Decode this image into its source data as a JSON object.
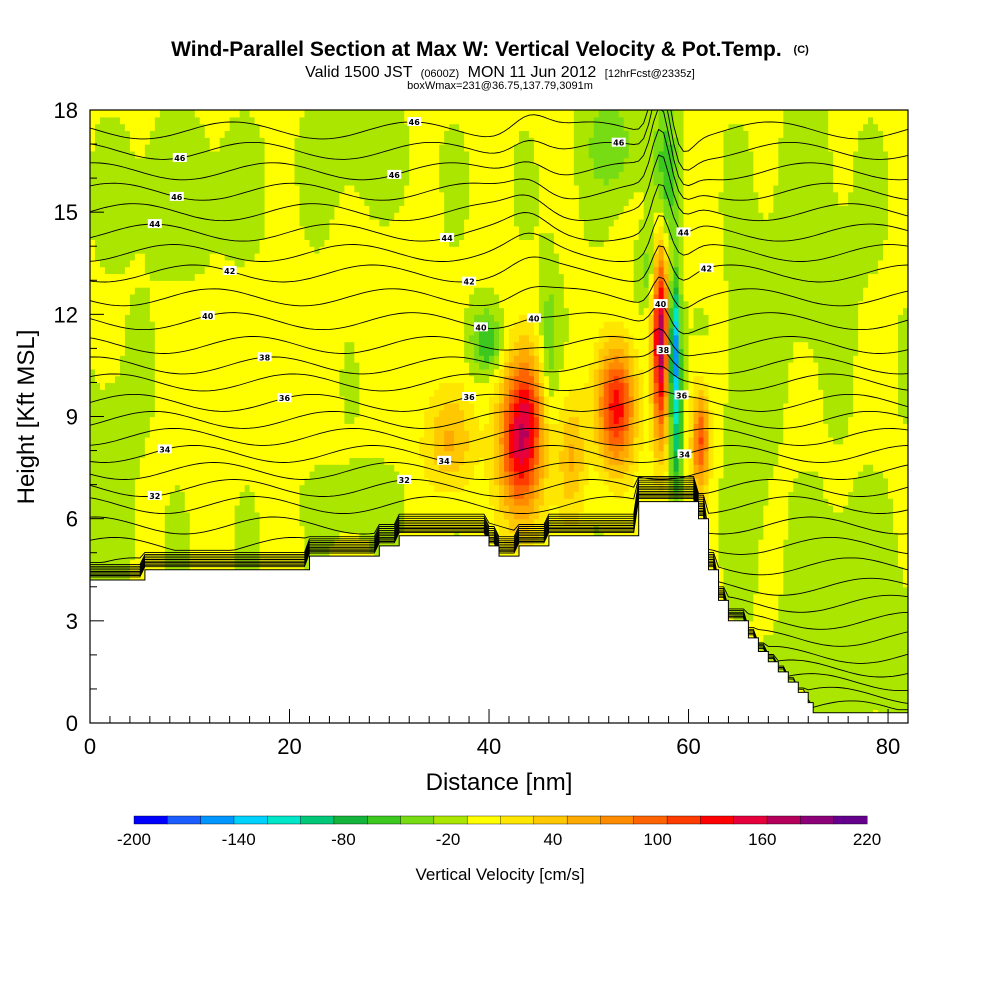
{
  "title": "Wind-Parallel Section at Max W: Vertical Velocity & Pot.Temp.",
  "title_suffix": "(C)",
  "subtitle": {
    "part1": "Valid 1500 JST",
    "part2": "(0600Z)",
    "part3": "MON 11 Jun 2012",
    "part4": "[12hrFcst@2335z]"
  },
  "subtitle2": "boxWmax=231@36.75,137.79,3091m",
  "chart_data": {
    "type": "heatmap",
    "xlabel": "Distance [nm]",
    "ylabel": "Height [Kft MSL]",
    "xlim": [
      0,
      82
    ],
    "ylim": [
      0,
      18
    ],
    "x_ticks": [
      0,
      20,
      40,
      60,
      80
    ],
    "y_ticks": [
      0,
      3,
      6,
      9,
      12,
      15,
      18
    ],
    "fill_variable": "Vertical Velocity [cm/s]",
    "contour_variable": "Potential temperature (C)",
    "colorbar": {
      "label": "Vertical Velocity [cm/s]",
      "levels": [
        -200,
        -180,
        -160,
        -140,
        -120,
        -100,
        -80,
        -60,
        -40,
        -20,
        0,
        20,
        40,
        60,
        80,
        100,
        120,
        140,
        160,
        180,
        200,
        220
      ],
      "tick_labels": [
        "-200",
        "-140",
        "-80",
        "-20",
        "40",
        "100",
        "160",
        "220"
      ],
      "colors": [
        "#0000ff",
        "#1a5cff",
        "#0096ff",
        "#00d2ff",
        "#00e6c8",
        "#00c878",
        "#14b43c",
        "#3cc81e",
        "#78dc14",
        "#aae600",
        "#ffff00",
        "#ffe600",
        "#ffc800",
        "#ffaa00",
        "#ff8c00",
        "#ff6400",
        "#ff3c00",
        "#ff0000",
        "#e6003c",
        "#b4005a",
        "#8c0078",
        "#64008c"
      ]
    },
    "terrain": [
      [
        0,
        4.2
      ],
      [
        5.5,
        4.2
      ],
      [
        5.5,
        4.5
      ],
      [
        22,
        4.5
      ],
      [
        22,
        4.9
      ],
      [
        29,
        4.9
      ],
      [
        29,
        5.2
      ],
      [
        31,
        5.2
      ],
      [
        31,
        5.5
      ],
      [
        40,
        5.5
      ],
      [
        40,
        5.2
      ],
      [
        41,
        5.2
      ],
      [
        41,
        4.9
      ],
      [
        43,
        4.9
      ],
      [
        43,
        5.2
      ],
      [
        46,
        5.2
      ],
      [
        46,
        5.5
      ],
      [
        55,
        5.5
      ],
      [
        55,
        6.5
      ],
      [
        61,
        6.5
      ],
      [
        61,
        6.0
      ],
      [
        62,
        6.0
      ],
      [
        62,
        4.5
      ],
      [
        63,
        4.5
      ],
      [
        63,
        3.6
      ],
      [
        64,
        3.6
      ],
      [
        64,
        3.0
      ],
      [
        66,
        3.0
      ],
      [
        66,
        2.5
      ],
      [
        67,
        2.5
      ],
      [
        67,
        2.1
      ],
      [
        68,
        2.1
      ],
      [
        68,
        1.8
      ],
      [
        69,
        1.8
      ],
      [
        69,
        1.5
      ],
      [
        70,
        1.5
      ],
      [
        70,
        1.2
      ],
      [
        71,
        1.2
      ],
      [
        71,
        0.9
      ],
      [
        72,
        0.9
      ],
      [
        72,
        0.6
      ],
      [
        72.5,
        0.6
      ],
      [
        72.5,
        0.3
      ],
      [
        82,
        0.3
      ]
    ],
    "updrafts": [
      {
        "x": 43.2,
        "y": 8.3,
        "sx": 2.2,
        "sy": 2.3,
        "w": 170
      },
      {
        "x": 44.2,
        "y": 9.5,
        "sx": 1.4,
        "sy": 1.6,
        "w": 30
      },
      {
        "x": 52.8,
        "y": 9.3,
        "sx": 1.9,
        "sy": 1.8,
        "w": 150
      },
      {
        "x": 57.2,
        "y": 11.3,
        "sx": 0.8,
        "sy": 3.0,
        "w": 190
      },
      {
        "x": 61.2,
        "y": 8.3,
        "sx": 0.9,
        "sy": 1.5,
        "w": 120
      },
      {
        "x": 36.0,
        "y": 8.3,
        "sx": 2.6,
        "sy": 1.5,
        "w": 60
      },
      {
        "x": 48.3,
        "y": 7.8,
        "sx": 1.4,
        "sy": 1.8,
        "w": 60
      },
      {
        "x": 16.0,
        "y": 10.5,
        "sx": 5.0,
        "sy": 1.8,
        "w": 8
      },
      {
        "x": 30.0,
        "y": 12.5,
        "sx": 3.5,
        "sy": 2.0,
        "w": 8
      }
    ],
    "downdrafts": [
      {
        "x": 58.6,
        "y": 11.0,
        "sx": 0.55,
        "sy": 2.0,
        "w": -160
      },
      {
        "x": 58.8,
        "y": 8.2,
        "sx": 0.6,
        "sy": 1.8,
        "w": -70
      },
      {
        "x": 57.7,
        "y": 16.0,
        "sx": 1.2,
        "sy": 2.2,
        "w": -60
      },
      {
        "x": 46.0,
        "y": 11.0,
        "sx": 0.9,
        "sy": 2.2,
        "w": -40
      },
      {
        "x": 39.7,
        "y": 11.2,
        "sx": 1.5,
        "sy": 0.9,
        "w": -60
      },
      {
        "x": 52.2,
        "y": 17.0,
        "sx": 2.4,
        "sy": 1.4,
        "w": -40
      },
      {
        "x": 56.0,
        "y": 13.3,
        "sx": 1.0,
        "sy": 1.0,
        "w": -35
      },
      {
        "x": 27.0,
        "y": 6.5,
        "sx": 4.0,
        "sy": 0.9,
        "w": -15
      },
      {
        "x": 76.0,
        "y": 3.0,
        "sx": 5.0,
        "sy": 2.8,
        "w": -20
      },
      {
        "x": 72.0,
        "y": 14.0,
        "sx": 5.0,
        "sy": 3.5,
        "w": -10
      },
      {
        "x": 9.0,
        "y": 15.5,
        "sx": 7.0,
        "sy": 2.0,
        "w": -10
      },
      {
        "x": 27.0,
        "y": 16.5,
        "sx": 6.0,
        "sy": 1.5,
        "w": -8
      },
      {
        "x": 2.0,
        "y": 6.5,
        "sx": 2.5,
        "sy": 4.0,
        "w": -12
      },
      {
        "x": 66.0,
        "y": 9.0,
        "sx": 2.0,
        "sy": 4.0,
        "w": -15
      }
    ],
    "theta_contours": [
      {
        "base": 0.4,
        "label": ""
      },
      {
        "base": 0.8,
        "label": ""
      },
      {
        "base": 1.2,
        "label": ""
      },
      {
        "base": 1.6,
        "label": ""
      },
      {
        "base": 2.0,
        "label": ""
      },
      {
        "base": 2.5,
        "label": ""
      },
      {
        "base": 3.0,
        "label": ""
      },
      {
        "base": 3.5,
        "label": ""
      },
      {
        "base": 4.0,
        "label": ""
      },
      {
        "base": 4.6,
        "label": ""
      },
      {
        "base": 5.2,
        "label": ""
      },
      {
        "base": 5.8,
        "label": ""
      },
      {
        "base": 6.4,
        "label": ""
      },
      {
        "base": 6.9,
        "label": "32"
      },
      {
        "base": 7.4,
        "label": ""
      },
      {
        "base": 7.9,
        "label": "34"
      },
      {
        "base": 8.4,
        "label": ""
      },
      {
        "base": 8.9,
        "label": ""
      },
      {
        "base": 9.4,
        "label": "36"
      },
      {
        "base": 10.0,
        "label": ""
      },
      {
        "base": 10.5,
        "label": "38"
      },
      {
        "base": 11.1,
        "label": ""
      },
      {
        "base": 11.8,
        "label": "40"
      },
      {
        "base": 12.5,
        "label": ""
      },
      {
        "base": 13.2,
        "label": "42"
      },
      {
        "base": 13.8,
        "label": ""
      },
      {
        "base": 14.4,
        "label": "44"
      },
      {
        "base": 15.0,
        "label": ""
      },
      {
        "base": 15.6,
        "label": "46"
      },
      {
        "base": 16.2,
        "label": ""
      },
      {
        "base": 16.8,
        "label": "46"
      },
      {
        "base": 17.4,
        "label": ""
      }
    ]
  }
}
